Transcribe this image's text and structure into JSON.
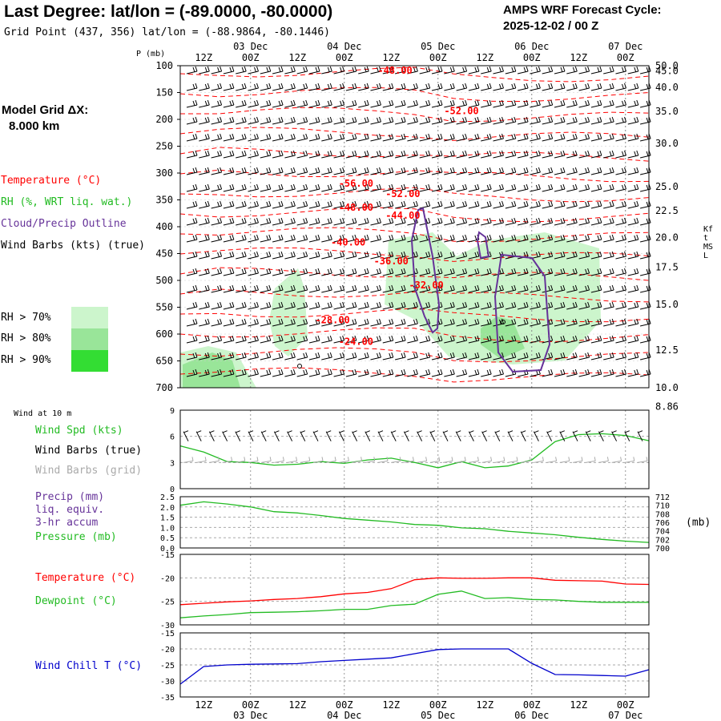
{
  "header": {
    "title": "Last Degree:  lat/lon = (-89.0000, -80.0000)",
    "subtitle": "Grid Point (437, 356) lat/lon = (-88.9864, -80.1446)",
    "cycle_line1": "AMPS WRF Forecast Cycle:",
    "cycle_line2": "2025-12-02 / 00  Z",
    "grid_label": "Model Grid ΔX:",
    "grid_value": "8.000 km"
  },
  "legend": {
    "temperature": "Temperature (°C)",
    "rh": "RH (%, WRT liq. wat.)",
    "cloud": "Cloud/Precip Outline",
    "wind": "Wind Barbs (kts) (true)",
    "rh70": "RH > 70%",
    "rh80": "RH > 80%",
    "rh90": "RH > 90%",
    "wind10m": "Wind at 10 m",
    "wind_spd": "Wind Spd (kts)",
    "wind_barbs_true": "Wind Barbs (true)",
    "wind_barbs_grid": "Wind Barbs (grid)",
    "precip1": "Precip (mm)",
    "precip2": "liq. equiv.",
    "precip3": "3-hr accum",
    "pressure": "Pressure (mb)",
    "pressure_unit": "(mb)",
    "temp2": "Temperature (°C)",
    "dewpoint": "Dewpoint (°C)",
    "windchill": "Wind Chill T (°C)",
    "kft": "Kft MSL",
    "p_unit": "P (mb)"
  },
  "colors": {
    "temp": "#ff0000",
    "rh": "#22bb22",
    "cloud": "#663399",
    "wind": "#000000",
    "wind_grid": "#aaaaaa",
    "chill": "#0000cc",
    "rh70": "#ccf5cc",
    "rh80": "#99e599",
    "rh90": "#33dd33"
  },
  "time_axis": {
    "hour_ticks": [
      "12Z",
      "00Z",
      "12Z",
      "00Z",
      "12Z",
      "00Z",
      "12Z",
      "00Z",
      "12Z",
      "00Z"
    ],
    "day_labels": [
      "03 Dec",
      "04 Dec",
      "05 Dec",
      "06 Dec",
      "07 Dec"
    ]
  },
  "chart_data": [
    {
      "type": "heatmap",
      "name": "cross-section",
      "pressure_levels": [
        "100",
        "150",
        "200",
        "250",
        "300",
        "350",
        "400",
        "450",
        "500",
        "550",
        "600",
        "650",
        "700"
      ],
      "height_kft": [
        "50.0",
        "45.0",
        "40.0",
        "35.0",
        "30.0",
        "25.0",
        "22.5",
        "20.0",
        "17.5",
        "15.0",
        "12.5",
        "10.0",
        "8.86"
      ],
      "height_kft_pressure": [
        100,
        110,
        140,
        185,
        245,
        325,
        370,
        420,
        475,
        545,
        630,
        700,
        735
      ],
      "ylim_mb": [
        100,
        700
      ],
      "xlim_hours": [
        0,
        120
      ],
      "temp_labels": [
        {
          "text": "-48.00",
          "t": 55,
          "p": 115
        },
        {
          "text": "-52.00",
          "t": 72,
          "p": 190
        },
        {
          "text": "-56.00",
          "t": 45,
          "p": 325
        },
        {
          "text": "-52.00",
          "t": 57,
          "p": 345
        },
        {
          "text": "-48.00",
          "t": 45,
          "p": 370
        },
        {
          "text": "-44.00",
          "t": 57,
          "p": 385
        },
        {
          "text": "-40.00",
          "t": 43,
          "p": 435
        },
        {
          "text": "-36.00",
          "t": 54,
          "p": 470
        },
        {
          "text": "-32.00",
          "t": 63,
          "p": 515
        },
        {
          "text": "-28.00",
          "t": 39,
          "p": 580
        },
        {
          "text": "-24.00",
          "t": 45,
          "p": 620
        }
      ]
    },
    {
      "type": "line",
      "name": "wind10m",
      "ylim": [
        0,
        9
      ],
      "yticks": [
        "0",
        "3",
        "6",
        "9"
      ],
      "series": [
        {
          "name": "Wind Spd (kts)",
          "color": "#22bb22",
          "x": [
            0,
            6,
            12,
            18,
            24,
            30,
            36,
            42,
            48,
            54,
            60,
            66,
            72,
            78,
            84,
            90,
            96,
            102,
            108,
            114,
            120
          ],
          "values": [
            4.9,
            4.2,
            3.1,
            3.0,
            2.7,
            2.8,
            3.1,
            2.9,
            3.3,
            3.5,
            3.0,
            2.4,
            3.1,
            2.4,
            2.6,
            3.3,
            5.4,
            6.2,
            6.3,
            6.1,
            5.5
          ]
        }
      ]
    },
    {
      "type": "line",
      "name": "precip-pressure",
      "ylim_left": [
        0,
        2.5
      ],
      "yticks_left": [
        "0.0",
        "0.5",
        "1.0",
        "1.5",
        "2.0",
        "2.5"
      ],
      "ylim_right": [
        700,
        712
      ],
      "yticks_right": [
        "700",
        "702",
        "704",
        "706",
        "708",
        "710",
        "712"
      ],
      "series": [
        {
          "name": "Pressure (mb)",
          "color": "#22bb22",
          "x": [
            0,
            6,
            12,
            18,
            24,
            30,
            36,
            42,
            48,
            54,
            60,
            66,
            72,
            78,
            84,
            90,
            96,
            102,
            108,
            114,
            120
          ],
          "values": [
            710.0,
            710.8,
            710.3,
            709.6,
            708.5,
            708.2,
            707.6,
            706.9,
            706.5,
            706.1,
            705.5,
            705.3,
            704.7,
            704.5,
            703.9,
            703.5,
            703.1,
            702.5,
            702.0,
            701.6,
            701.3
          ]
        }
      ]
    },
    {
      "type": "line",
      "name": "temperature",
      "ylim": [
        -30,
        -15
      ],
      "yticks": [
        "-30",
        "-25",
        "-20",
        "-15"
      ],
      "series": [
        {
          "name": "Temperature (°C)",
          "color": "#ff0000",
          "x": [
            0,
            6,
            12,
            18,
            24,
            30,
            36,
            42,
            48,
            54,
            60,
            66,
            72,
            78,
            84,
            90,
            96,
            102,
            108,
            114,
            120
          ],
          "values": [
            -25.7,
            -25.4,
            -25.1,
            -24.9,
            -24.6,
            -24.4,
            -24.0,
            -23.4,
            -23.1,
            -22.3,
            -20.4,
            -20.0,
            -20.1,
            -20.1,
            -20.0,
            -20.0,
            -20.5,
            -20.6,
            -20.7,
            -21.3,
            -21.4
          ]
        },
        {
          "name": "Dewpoint (°C)",
          "color": "#22bb22",
          "x": [
            0,
            6,
            12,
            18,
            24,
            30,
            36,
            42,
            48,
            54,
            60,
            66,
            72,
            78,
            84,
            90,
            96,
            102,
            108,
            114,
            120
          ],
          "values": [
            -28.5,
            -28.1,
            -27.8,
            -27.4,
            -27.3,
            -27.2,
            -27.0,
            -26.7,
            -26.7,
            -25.9,
            -25.6,
            -23.5,
            -22.8,
            -24.4,
            -24.2,
            -24.6,
            -24.7,
            -25.0,
            -25.2,
            -25.2,
            -25.2
          ]
        }
      ]
    },
    {
      "type": "line",
      "name": "windchill",
      "ylim": [
        -35,
        -15
      ],
      "yticks": [
        "-35",
        "-30",
        "-25",
        "-20",
        "-15"
      ],
      "series": [
        {
          "name": "Wind Chill T (°C)",
          "color": "#0000cc",
          "x": [
            0,
            6,
            12,
            18,
            24,
            30,
            36,
            42,
            48,
            54,
            60,
            66,
            72,
            78,
            84,
            90,
            96,
            102,
            108,
            114,
            120
          ],
          "values": [
            -31.0,
            -25.5,
            -25.0,
            -24.8,
            -24.7,
            -24.6,
            -24.0,
            -23.6,
            -23.2,
            -22.8,
            -21.5,
            -20.2,
            -20.0,
            -20.0,
            -20.0,
            -24.5,
            -28.0,
            -28.1,
            -28.3,
            -28.5,
            -26.5
          ]
        }
      ]
    }
  ]
}
